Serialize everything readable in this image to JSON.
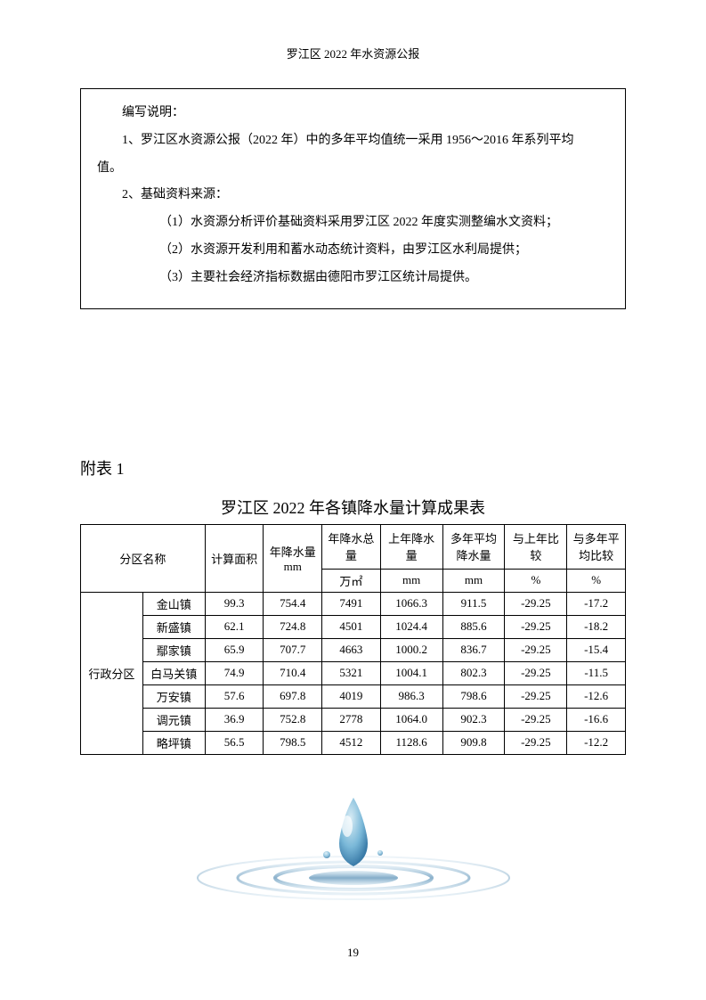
{
  "header": "罗江区 2022 年水资源公报",
  "noteBox": {
    "title": "编写说明：",
    "line1": "1、罗江区水资源公报（2022 年）中的多年平均值统一采用 1956～2016 年系列平均",
    "line1b": "值。",
    "line2": "2、基础资料来源：",
    "sub1": "（1）水资源分析评价基础资料采用罗江区 2022 年度实测整编水文资料；",
    "sub2": "（2）水资源开发利用和蓄水动态统计资料，由罗江区水利局提供；",
    "sub3": "（3）主要社会经济指标数据由德阳市罗江区统计局提供。"
  },
  "appendixLabel": "附表 1",
  "tableTitle": "罗江区 2022 年各镇降水量计算成果表",
  "table": {
    "headers": {
      "region": "分区名称",
      "area": "计算面积",
      "rainMm": "年降水量mm",
      "rainTotal": "年降水总量",
      "prevRain": "上年降水量",
      "avgRain": "多年平均降水量",
      "cmpPrev": "与上年比较",
      "cmpAvg": "与多年平均比较"
    },
    "units": {
      "rainTotal": "万㎡",
      "prevRain": "mm",
      "avgRain": "mm",
      "cmpPrev": "%",
      "cmpAvg": "%"
    },
    "regionGroup": "行政分区",
    "rows": [
      {
        "town": "金山镇",
        "area": "99.3",
        "mm": "754.4",
        "total": "7491",
        "prev": "1066.3",
        "avg": "911.5",
        "cmp1": "-29.25",
        "cmp2": "-17.2"
      },
      {
        "town": "新盛镇",
        "area": "62.1",
        "mm": "724.8",
        "total": "4501",
        "prev": "1024.4",
        "avg": "885.6",
        "cmp1": "-29.25",
        "cmp2": "-18.2"
      },
      {
        "town": "鄢家镇",
        "area": "65.9",
        "mm": "707.7",
        "total": "4663",
        "prev": "1000.2",
        "avg": "836.7",
        "cmp1": "-29.25",
        "cmp2": "-15.4"
      },
      {
        "town": "白马关镇",
        "area": "74.9",
        "mm": "710.4",
        "total": "5321",
        "prev": "1004.1",
        "avg": "802.3",
        "cmp1": "-29.25",
        "cmp2": "-11.5"
      },
      {
        "town": "万安镇",
        "area": "57.6",
        "mm": "697.8",
        "total": "4019",
        "prev": "986.3",
        "avg": "798.6",
        "cmp1": "-29.25",
        "cmp2": "-12.6"
      },
      {
        "town": "调元镇",
        "area": "36.9",
        "mm": "752.8",
        "total": "2778",
        "prev": "1064.0",
        "avg": "902.3",
        "cmp1": "-29.25",
        "cmp2": "-16.6"
      },
      {
        "town": "略坪镇",
        "area": "56.5",
        "mm": "798.5",
        "total": "4512",
        "prev": "1128.6",
        "avg": "909.8",
        "cmp1": "-29.25",
        "cmp2": "-12.2"
      }
    ]
  },
  "pageNumber": "19",
  "illustration": {
    "dropColor": "#5a9bc4",
    "rippleColor": "#3a7ba8",
    "highlightColor": "#d8ecf5"
  }
}
